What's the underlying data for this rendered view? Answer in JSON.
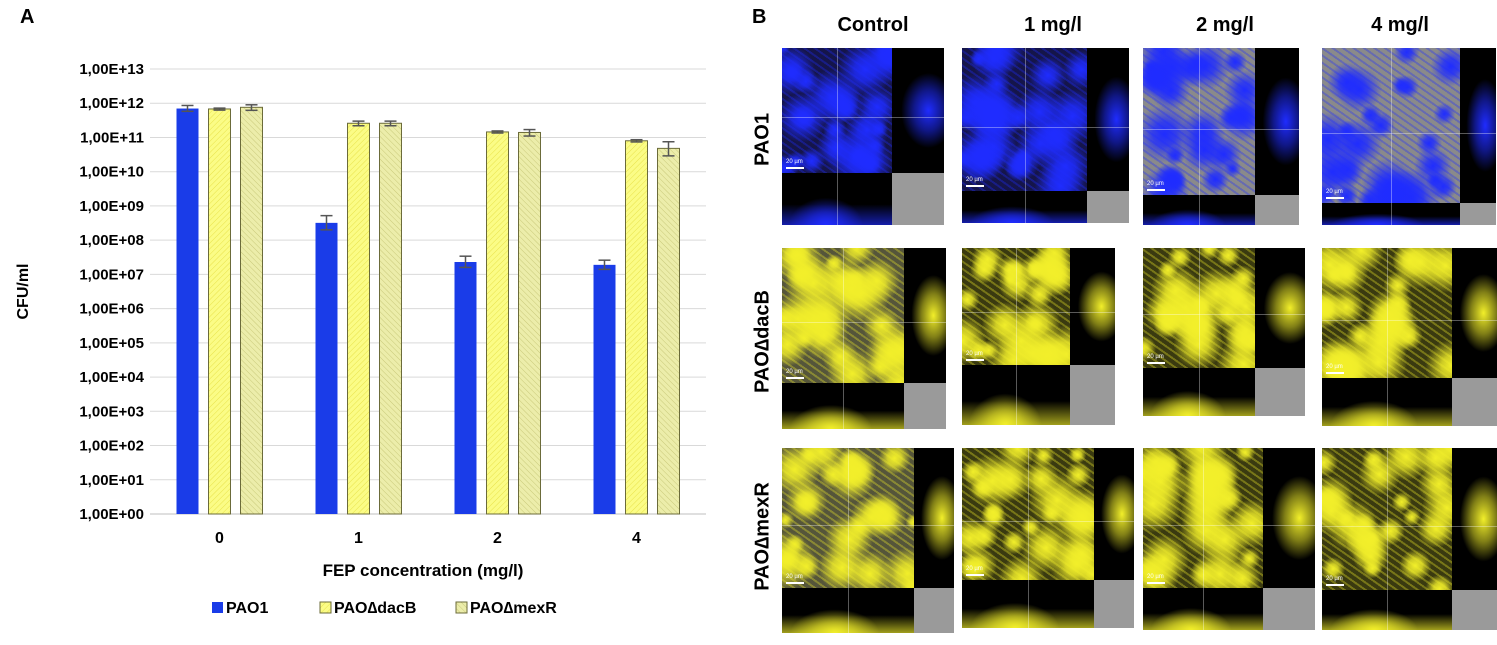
{
  "panel_a_label": "A",
  "panel_b_label": "B",
  "chart_data": {
    "type": "bar",
    "xlabel": "FEP concentration (mg/l)",
    "ylabel": "CFU/ml",
    "scale": "log10",
    "ylim_exp": [
      0,
      13
    ],
    "tick_labels": [
      "1,00E+00",
      "1,00E+01",
      "1,00E+02",
      "1,00E+03",
      "1,00E+04",
      "1,00E+05",
      "1,00E+06",
      "1,00E+07",
      "1,00E+08",
      "1,00E+09",
      "1,00E+10",
      "1,00E+11",
      "1,00E+12",
      "1,00E+13"
    ],
    "categories": [
      "0",
      "1",
      "2",
      "4"
    ],
    "grid": true,
    "legend_position": "bottom",
    "series": [
      {
        "name": "PAO1",
        "color": "#1a3ce8",
        "values": [
          700000000000.0,
          320000000.0,
          23000000.0,
          19000000.0
        ],
        "err_hi": [
          860000000000.0,
          520000000.0,
          34000000.0,
          26000000.0
        ],
        "err_lo": [
          580000000000.0,
          200000000.0,
          16000000.0,
          14000000.0
        ]
      },
      {
        "name": "PAO∆dacB",
        "color": "#fbfc86",
        "values": [
          680000000000.0,
          260000000000.0,
          145000000000.0,
          80000000000.0
        ],
        "err_hi": [
          720000000000.0,
          300000000000.0,
          155000000000.0,
          86000000000.0
        ],
        "err_lo": [
          630000000000.0,
          220000000000.0,
          135000000000.0,
          74000000000.0
        ]
      },
      {
        "name": "PAO∆mexR",
        "color": "#ecedaa",
        "values": [
          760000000000.0,
          260000000000.0,
          140000000000.0,
          48000000000.0
        ],
        "err_hi": [
          900000000000.0,
          300000000000.0,
          170000000000.0,
          75000000000.0
        ],
        "err_lo": [
          620000000000.0,
          220000000000.0,
          110000000000.0,
          29000000000.0
        ]
      }
    ]
  },
  "micrographs": {
    "columns": [
      "Control",
      "1 mg/l",
      "2 mg/l",
      "4 mg/l"
    ],
    "rows": [
      {
        "label": "PAO1",
        "color": "#1f2cff"
      },
      {
        "label": "PAO∆dacB",
        "color": "#f2ef2a"
      },
      {
        "label": "PAO∆mexR",
        "color": "#f2ef2a"
      }
    ],
    "scale_text": "20 µm"
  }
}
